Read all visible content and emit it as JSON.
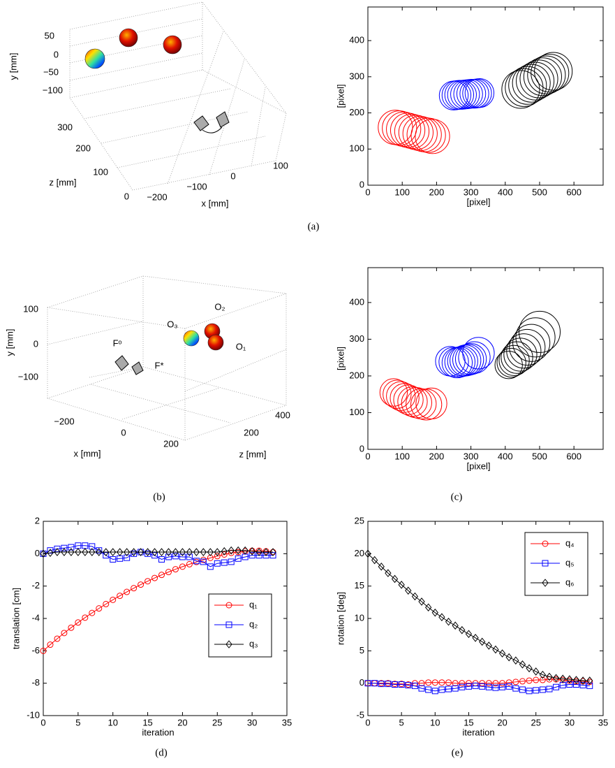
{
  "chart_data": [
    {
      "type": "circles",
      "xlabel": "[pixel]",
      "ylabel": "[pixel]",
      "xlim": [
        0,
        685
      ],
      "ylim": [
        0,
        493
      ],
      "xticks": [
        0,
        100,
        200,
        300,
        400,
        500,
        600
      ],
      "yticks": [
        0,
        100,
        200,
        300,
        400
      ],
      "series": [
        {
          "color": "#ff0000",
          "x": [
            80,
            92,
            104,
            116,
            128,
            140,
            152,
            164,
            176,
            188
          ],
          "y": [
            160,
            158,
            155,
            152,
            149,
            146,
            143,
            140,
            138,
            135
          ],
          "radii": [
            50,
            50,
            50,
            50,
            50,
            50,
            50,
            50,
            50,
            50
          ]
        },
        {
          "color": "#0000ff",
          "x": [
            250,
            258,
            266,
            274,
            283,
            292,
            301,
            310,
            318,
            325
          ],
          "y": [
            248,
            249,
            250,
            250,
            251,
            252,
            253,
            253,
            254,
            255
          ],
          "radii": [
            42,
            42,
            42,
            42,
            42,
            42,
            42,
            42,
            42,
            42
          ]
        },
        {
          "color": "#000000",
          "x": [
            445,
            455,
            465,
            476,
            487,
            498,
            509,
            520,
            530,
            540
          ],
          "y": [
            265,
            270,
            276,
            282,
            288,
            294,
            300,
            305,
            310,
            315
          ],
          "radii": [
            55,
            55,
            55,
            55,
            55,
            55,
            55,
            55,
            55,
            55
          ]
        }
      ]
    },
    {
      "type": "circles",
      "xlabel": "[pixel]",
      "ylabel": "[pixel]",
      "xlim": [
        0,
        685
      ],
      "ylim": [
        0,
        495
      ],
      "xticks": [
        0,
        100,
        200,
        300,
        400,
        500,
        600
      ],
      "yticks": [
        0,
        100,
        200,
        300,
        400
      ],
      "series": [
        {
          "color": "#ff0000",
          "x": [
            75,
            85,
            96,
            107,
            118,
            130,
            142,
            155,
            170,
            185
          ],
          "y": [
            155,
            150,
            145,
            140,
            135,
            130,
            127,
            124,
            122,
            125
          ],
          "radii": [
            40,
            41,
            42,
            42,
            43,
            43,
            44,
            44,
            45,
            45
          ]
        },
        {
          "color": "#0000ff",
          "x": [
            240,
            250,
            260,
            268,
            276,
            284,
            292,
            300,
            310,
            322
          ],
          "y": [
            240,
            238,
            236,
            238,
            240,
            242,
            244,
            246,
            250,
            262
          ],
          "radii": [
            43,
            43,
            44,
            44,
            44,
            45,
            45,
            45,
            46,
            46
          ]
        },
        {
          "color": "#000000",
          "x": [
            410,
            418,
            426,
            434,
            444,
            454,
            464,
            476,
            488,
            500
          ],
          "y": [
            230,
            236,
            242,
            250,
            258,
            268,
            278,
            290,
            305,
            320
          ],
          "radii": [
            40,
            42,
            44,
            46,
            48,
            50,
            52,
            54,
            57,
            60
          ]
        }
      ]
    },
    {
      "type": "line",
      "xlabel": "iteration",
      "ylabel": "translation [cm]",
      "xlim": [
        0,
        35
      ],
      "ylim": [
        -10,
        2
      ],
      "xticks": [
        0,
        5,
        10,
        15,
        20,
        25,
        30,
        35
      ],
      "yticks": [
        -10,
        -8,
        -6,
        -4,
        -2,
        0,
        2
      ],
      "legend": "center right",
      "x": [
        0,
        1,
        2,
        3,
        4,
        5,
        6,
        7,
        8,
        9,
        10,
        11,
        12,
        13,
        14,
        15,
        16,
        17,
        18,
        19,
        20,
        21,
        22,
        23,
        24,
        25,
        26,
        27,
        28,
        29,
        30,
        31,
        32,
        33
      ],
      "series": [
        {
          "name": "q₁",
          "color": "#ff0000",
          "marker": "circle",
          "values": [
            -6,
            -5.62,
            -5.25,
            -4.9,
            -4.57,
            -4.25,
            -3.95,
            -3.66,
            -3.38,
            -3.11,
            -2.85,
            -2.6,
            -2.36,
            -2.13,
            -1.91,
            -1.7,
            -1.5,
            -1.31,
            -1.13,
            -0.96,
            -0.8,
            -0.65,
            -0.51,
            -0.38,
            -0.26,
            -0.15,
            -0.05,
            0.05,
            0.1,
            0.15,
            0.18,
            0.18,
            0.15,
            0.1
          ]
        },
        {
          "name": "q₂",
          "color": "#0000ff",
          "marker": "square",
          "values": [
            0,
            0.2,
            0.3,
            0.35,
            0.4,
            0.5,
            0.5,
            0.45,
            0.2,
            -0.1,
            -0.35,
            -0.3,
            -0.25,
            0,
            0.1,
            0,
            -0.1,
            -0.35,
            -0.2,
            -0.15,
            -0.2,
            -0.2,
            -0.45,
            -0.5,
            -0.8,
            -0.6,
            -0.55,
            -0.5,
            -0.3,
            -0.2,
            -0.1,
            -0.1,
            -0.1,
            -0.1
          ]
        },
        {
          "name": "q₃",
          "color": "#000000",
          "marker": "diamond",
          "values": [
            0,
            0.05,
            0.1,
            0.1,
            0.1,
            0.1,
            0.1,
            0.1,
            0.1,
            0.1,
            0.1,
            0.1,
            0.1,
            0.1,
            0.1,
            0.1,
            0.1,
            0.1,
            0.1,
            0.1,
            0.1,
            0.1,
            0.1,
            0.1,
            0.1,
            0.1,
            0.15,
            0.2,
            0.2,
            0.2,
            0.15,
            0.1,
            0.1,
            0.1
          ]
        }
      ]
    },
    {
      "type": "line",
      "xlabel": "iteration",
      "ylabel": "rotation [deg]",
      "xlim": [
        0,
        35
      ],
      "ylim": [
        -5,
        25
      ],
      "xticks": [
        0,
        5,
        10,
        15,
        20,
        25,
        30,
        35
      ],
      "yticks": [
        -5,
        0,
        5,
        10,
        15,
        20,
        25
      ],
      "legend": "upper right",
      "x": [
        0,
        1,
        2,
        3,
        4,
        5,
        6,
        7,
        8,
        9,
        10,
        11,
        12,
        13,
        14,
        15,
        16,
        17,
        18,
        19,
        20,
        21,
        22,
        23,
        24,
        25,
        26,
        27,
        28,
        29,
        30,
        31,
        32,
        33
      ],
      "series": [
        {
          "name": "q₄",
          "color": "#ff0000",
          "marker": "circle",
          "values": [
            0,
            0,
            0,
            0,
            -0.1,
            -0.1,
            -0.2,
            0,
            0,
            0.1,
            0.1,
            0.1,
            0.1,
            0,
            0,
            0,
            0,
            0,
            0,
            0,
            0,
            0.1,
            0.2,
            0.3,
            0.4,
            0.5,
            0.5,
            0.6,
            0.6,
            0.5,
            0.4,
            0.3,
            0.3,
            0.2
          ]
        },
        {
          "name": "q₅",
          "color": "#0000ff",
          "marker": "square",
          "values": [
            0,
            0,
            -0.1,
            -0.1,
            -0.2,
            -0.2,
            -0.3,
            -0.4,
            -0.8,
            -1,
            -1.2,
            -1,
            -0.9,
            -0.8,
            -0.6,
            -0.5,
            -0.4,
            -0.5,
            -0.6,
            -0.7,
            -0.6,
            -0.5,
            -0.8,
            -1,
            -1.2,
            -1.1,
            -1,
            -0.9,
            -0.6,
            -0.3,
            -0.2,
            -0.2,
            -0.3,
            -0.4
          ]
        },
        {
          "name": "q₆",
          "color": "#000000",
          "marker": "diamond",
          "values": [
            20,
            19,
            18,
            17,
            16.1,
            15.2,
            14.3,
            13.4,
            12.6,
            11.7,
            10.9,
            10.2,
            9.5,
            8.9,
            8.2,
            7.6,
            7,
            6.4,
            5.8,
            5.2,
            4.6,
            4,
            3.5,
            2.9,
            2.3,
            1.8,
            1.3,
            1,
            0.8,
            0.7,
            0.6,
            0.5,
            0.4,
            0.4
          ]
        }
      ]
    }
  ],
  "scenes": [
    {
      "y_ticks": [
        "50",
        "0",
        "−50",
        "−100"
      ],
      "z_ticks": [
        "300",
        "200",
        "100",
        "0"
      ],
      "x_ticks": [
        "−200",
        "−100",
        "0",
        "100"
      ],
      "y_label": "y [mm]",
      "z_label": "z [mm]",
      "x_label": "x [mm]"
    },
    {
      "y_ticks": [
        "100",
        "0",
        "−100"
      ],
      "x_ticks": [
        "−200",
        "0",
        "200"
      ],
      "z_ticks": [
        "200",
        "400"
      ],
      "y_label": "y [mm]",
      "x_label": "x [mm]",
      "z_label": "z [mm]",
      "annotations": [
        "O₂",
        "O₃",
        "O₁",
        "Fᵒ",
        "F*"
      ]
    }
  ],
  "captions": [
    "(a)",
    "(b)",
    "(c)",
    "(d)",
    "(e)"
  ]
}
